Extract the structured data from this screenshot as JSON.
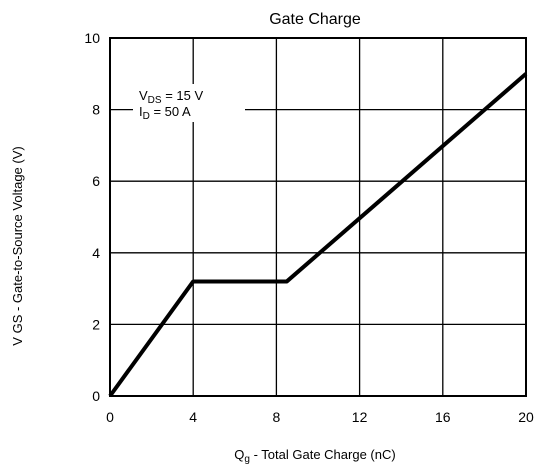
{
  "chart_data": {
    "type": "line",
    "title": "Gate Charge",
    "xlabel": {
      "main": "Q",
      "sub": "g",
      "rest": "  -  Total Gate Charge (nC)"
    },
    "ylabel": "V GS  -  Gate-to-Source Voltage (V)",
    "xlim": [
      0,
      20
    ],
    "ylim": [
      0,
      10
    ],
    "xticks": [
      "0",
      "4",
      "8",
      "12",
      "16",
      "20"
    ],
    "yticks": [
      "0",
      "2",
      "4",
      "6",
      "8",
      "10"
    ],
    "grid": true,
    "annotations": [
      {
        "main": "V",
        "sub": "DS",
        "rest": " = 15 V"
      },
      {
        "main": "I",
        "sub": "D",
        "rest": " = 50 A"
      }
    ],
    "series": [
      {
        "x": [
          0,
          4,
          8.5,
          20
        ],
        "y": [
          0,
          3.2,
          3.2,
          9.0
        ]
      }
    ]
  }
}
